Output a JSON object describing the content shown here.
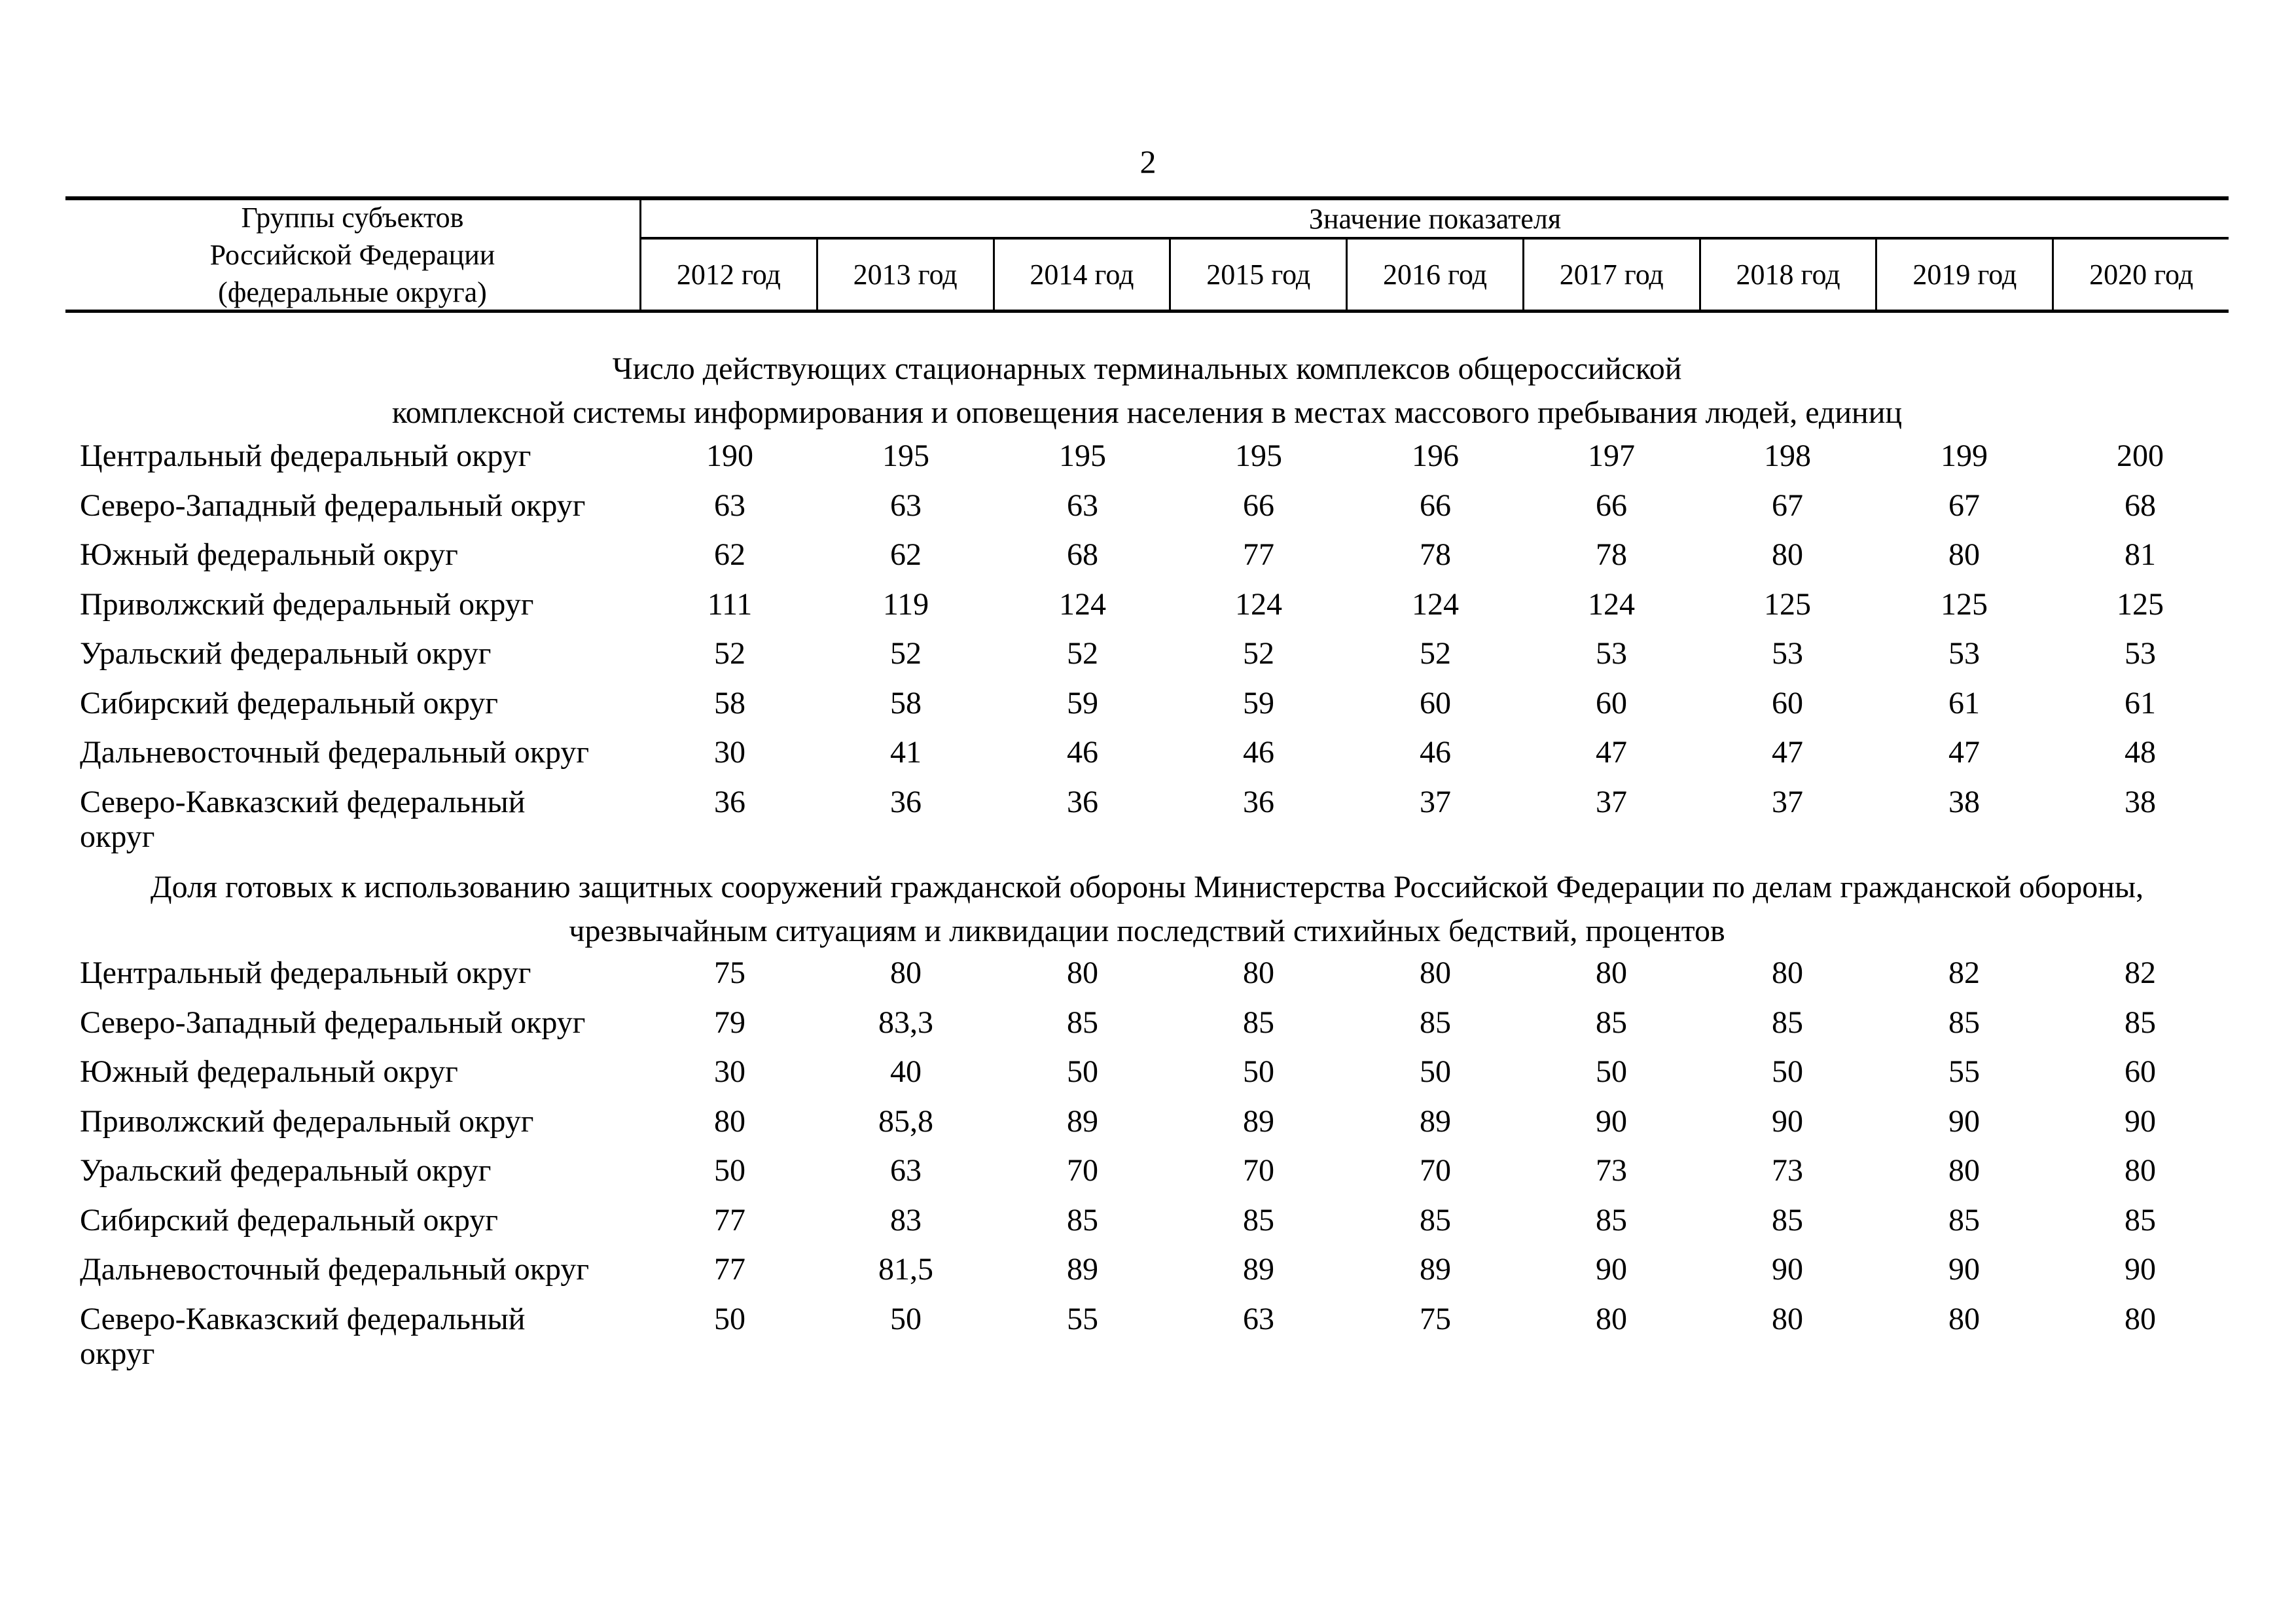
{
  "page": {
    "number": "2"
  },
  "table": {
    "header": {
      "group_column": "Группы субъектов\nРоссийской Федерации\n(федеральные округа)",
      "value_caption": "Значение показателя",
      "years": [
        "2012 год",
        "2013 год",
        "2014 год",
        "2015 год",
        "2016 год",
        "2017 год",
        "2018 год",
        "2019 год",
        "2020 год"
      ]
    },
    "sections": [
      {
        "title": "Число действующих стационарных терминальных комплексов общероссийской\nкомплексной системы информирования и оповещения населения в местах массового пребывания людей, единиц",
        "rows": [
          {
            "label": "Центральный федеральный округ",
            "values": [
              "190",
              "195",
              "195",
              "195",
              "196",
              "197",
              "198",
              "199",
              "200"
            ]
          },
          {
            "label": "Северо-Западный федеральный округ",
            "values": [
              "63",
              "63",
              "63",
              "66",
              "66",
              "66",
              "67",
              "67",
              "68"
            ]
          },
          {
            "label": "Южный федеральный округ",
            "values": [
              "62",
              "62",
              "68",
              "77",
              "78",
              "78",
              "80",
              "80",
              "81"
            ]
          },
          {
            "label": "Приволжский федеральный округ",
            "values": [
              "111",
              "119",
              "124",
              "124",
              "124",
              "124",
              "125",
              "125",
              "125"
            ]
          },
          {
            "label": "Уральский федеральный округ",
            "values": [
              "52",
              "52",
              "52",
              "52",
              "52",
              "53",
              "53",
              "53",
              "53"
            ]
          },
          {
            "label": "Сибирский федеральный округ",
            "values": [
              "58",
              "58",
              "59",
              "59",
              "60",
              "60",
              "60",
              "61",
              "61"
            ]
          },
          {
            "label": "Дальневосточный федеральный округ",
            "values": [
              "30",
              "41",
              "46",
              "46",
              "46",
              "47",
              "47",
              "47",
              "48"
            ]
          },
          {
            "label": "Северо-Кавказский федеральный\nокруг",
            "values": [
              "36",
              "36",
              "36",
              "36",
              "37",
              "37",
              "37",
              "38",
              "38"
            ]
          }
        ]
      },
      {
        "title": "Доля готовых к использованию защитных сооружений гражданской обороны Министерства Российской Федерации по делам гражданской обороны,\nчрезвычайным ситуациям и ликвидации последствий стихийных бедствий, процентов",
        "rows": [
          {
            "label": "Центральный федеральный округ",
            "values": [
              "75",
              "80",
              "80",
              "80",
              "80",
              "80",
              "80",
              "82",
              "82"
            ]
          },
          {
            "label": "Северо-Западный федеральный округ",
            "values": [
              "79",
              "83,3",
              "85",
              "85",
              "85",
              "85",
              "85",
              "85",
              "85"
            ]
          },
          {
            "label": "Южный федеральный округ",
            "values": [
              "30",
              "40",
              "50",
              "50",
              "50",
              "50",
              "50",
              "55",
              "60"
            ]
          },
          {
            "label": "Приволжский федеральный округ",
            "values": [
              "80",
              "85,8",
              "89",
              "89",
              "89",
              "90",
              "90",
              "90",
              "90"
            ]
          },
          {
            "label": "Уральский федеральный округ",
            "values": [
              "50",
              "63",
              "70",
              "70",
              "70",
              "73",
              "73",
              "80",
              "80"
            ]
          },
          {
            "label": "Сибирский федеральный округ",
            "values": [
              "77",
              "83",
              "85",
              "85",
              "85",
              "85",
              "85",
              "85",
              "85"
            ]
          },
          {
            "label": "Дальневосточный федеральный округ",
            "values": [
              "77",
              "81,5",
              "89",
              "89",
              "89",
              "90",
              "90",
              "90",
              "90"
            ]
          },
          {
            "label": "Северо-Кавказский федеральный\nокруг",
            "values": [
              "50",
              "50",
              "55",
              "63",
              "75",
              "80",
              "80",
              "80",
              "80"
            ]
          }
        ]
      }
    ]
  }
}
